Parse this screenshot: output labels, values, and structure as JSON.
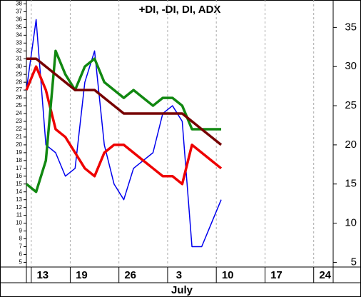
{
  "chart_data": {
    "type": "line",
    "title": "+DI, -DI, DI, ADX",
    "x": [
      0,
      1,
      2,
      3,
      4,
      5,
      6,
      7,
      8,
      9,
      10,
      11,
      12,
      13,
      14,
      15,
      16,
      17,
      18,
      19,
      20
    ],
    "xlim": [
      0,
      31.5
    ],
    "xticks": [
      {
        "value": 0.5,
        "label": "13"
      },
      {
        "value": 4.5,
        "label": "19"
      },
      {
        "value": 9.5,
        "label": "26"
      },
      {
        "value": 14.5,
        "label": "3"
      },
      {
        "value": 19.5,
        "label": "10"
      },
      {
        "value": 24.5,
        "label": "17"
      },
      {
        "value": 29.5,
        "label": "24"
      }
    ],
    "month_label": "July",
    "ylim": [
      4.4,
      38.5
    ],
    "yticks": [
      5,
      6,
      7,
      8,
      9,
      10,
      11,
      12,
      13,
      14,
      15,
      16,
      17,
      18,
      19,
      20,
      21,
      22,
      23,
      24,
      25,
      26,
      27,
      28,
      29,
      30,
      31,
      32,
      33,
      34,
      35,
      36,
      37,
      38
    ],
    "y2lim": [
      4.4,
      38.5
    ],
    "y2ticks": [
      5,
      10,
      15,
      20,
      25,
      30,
      35
    ],
    "grid": true,
    "series": [
      {
        "color": "#0000ee",
        "width": 1.5,
        "values": [
          27,
          36,
          20,
          19,
          16,
          17,
          28,
          32,
          20,
          15,
          13,
          17,
          18,
          19,
          24,
          25,
          23,
          7,
          7,
          10,
          13
        ]
      },
      {
        "color": "#ee0000",
        "width": 3.5,
        "values": [
          27,
          30,
          27,
          22,
          21,
          19,
          17,
          16,
          19,
          20,
          20,
          19,
          18,
          17,
          16,
          16,
          15,
          20,
          19,
          18,
          17
        ]
      },
      {
        "color": "#118811",
        "width": 3.5,
        "values": [
          15,
          14,
          18,
          32,
          29,
          27,
          30,
          31,
          28,
          27,
          26,
          27,
          26,
          25,
          26,
          26,
          25,
          22,
          22,
          22,
          22
        ]
      },
      {
        "color": "#770000",
        "width": 3.5,
        "values": [
          31,
          31,
          30,
          29,
          28,
          27,
          27,
          27,
          26,
          25,
          24,
          24,
          24,
          24,
          24,
          24,
          24,
          23,
          22,
          21,
          20
        ]
      }
    ]
  }
}
